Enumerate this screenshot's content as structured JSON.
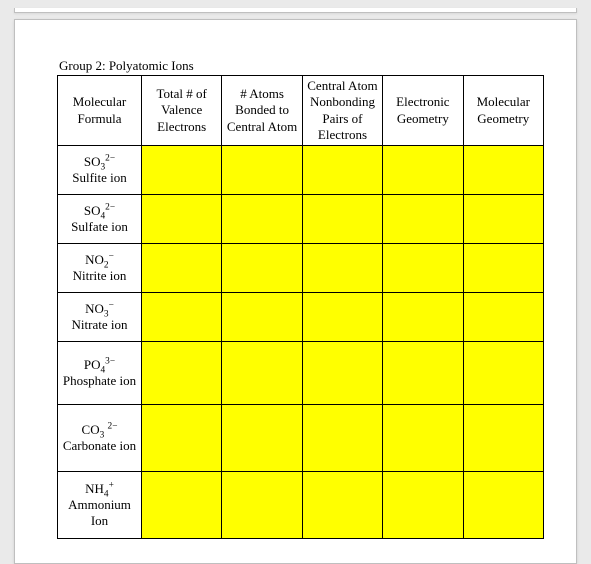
{
  "title": "Group 2: Polyatomic Ions",
  "columns": [
    "Molecular Formula",
    "Total # of Valence Electrons",
    "# Atoms Bonded to Central Atom",
    "Central Atom Nonbonding Pairs of Electrons",
    "Electronic Geometry",
    "Molecular Geometry"
  ],
  "rows": [
    {
      "formula_html": "SO<sub>3</sub><sup>2−</sup>",
      "name": "Sulfite ion",
      "height": "normal"
    },
    {
      "formula_html": "SO<sub>4</sub><sup>2−</sup>",
      "name": "Sulfate ion",
      "height": "normal"
    },
    {
      "formula_html": "NO<sub>2</sub><sup>−</sup>",
      "name": "Nitrite ion",
      "height": "normal"
    },
    {
      "formula_html": "NO<sub>3</sub><sup>−</sup>",
      "name": "Nitrate ion",
      "height": "normal"
    },
    {
      "formula_html": "PO<sub>4</sub><sup>3−</sup>",
      "name": "Phosphate ion",
      "height": "tall"
    },
    {
      "formula_html": "CO<sub>3</sub> <sup>2−</sup>",
      "name": "Carbonate ion",
      "height": "taller"
    },
    {
      "formula_html": "NH<sub>4</sub><sup>+</sup>",
      "name": "Ammonium Ion",
      "height": "taller"
    }
  ],
  "colors": {
    "highlight": "#ffff00",
    "page_bg": "#ffffff",
    "outer_bg": "#eaeaea",
    "border": "#000000"
  }
}
